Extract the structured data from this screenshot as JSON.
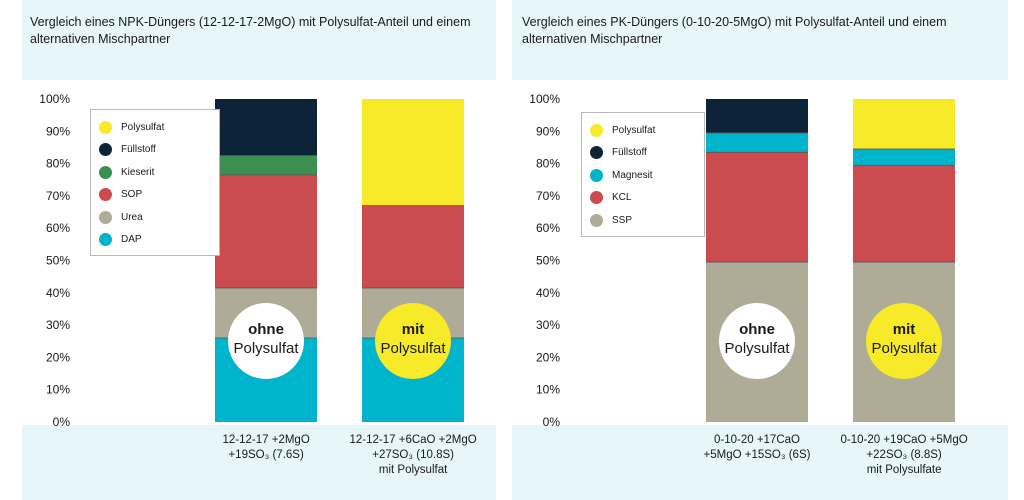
{
  "chart_data": [
    {
      "type": "bar",
      "stacked": true,
      "title_lines": [
        "Vergleich eines NPK-Düngers (12-12-17-2MgO) mit Polysulfat-Anteil und einem",
        "alternativen Mischpartner"
      ],
      "xlabel": "",
      "ylabel": "",
      "ylim": [
        0,
        100
      ],
      "y_ticks": [
        "0%",
        "10%",
        "20%",
        "30%",
        "40%",
        "50%",
        "60%",
        "70%",
        "80%",
        "90%",
        "100%"
      ],
      "grid": false,
      "legend_position": "top-left",
      "legend": [
        "Polysulfat",
        "Füllstoff",
        "Kieserit",
        "SOP",
        "Urea",
        "DAP"
      ],
      "categories": [
        {
          "lines": [
            "12-12-17 +2MgO",
            "+19SO₃ (7.6S)"
          ]
        },
        {
          "lines": [
            "12-12-17 +6CaO +2MgO",
            "+27SO₃ (10.8S)",
            "mit Polysulfat"
          ]
        }
      ],
      "badges": [
        {
          "lines": [
            "ohne",
            "Polysulfat"
          ],
          "style": "white"
        },
        {
          "lines": [
            "mit",
            "Polysulfat"
          ],
          "style": "yellow"
        }
      ],
      "series": [
        {
          "name": "DAP",
          "color": "#00b4cc",
          "values": [
            26,
            26
          ]
        },
        {
          "name": "Urea",
          "color": "#aeab96",
          "values": [
            15.5,
            15.5
          ]
        },
        {
          "name": "SOP",
          "color": "#cc4b4e",
          "values": [
            35,
            25.5
          ]
        },
        {
          "name": "Kieserit",
          "color": "#3d8f4f",
          "values": [
            6,
            0
          ]
        },
        {
          "name": "Füllstoff",
          "color": "#0d2438",
          "values": [
            17.5,
            0
          ]
        },
        {
          "name": "Polysulfat",
          "color": "#f7ea28",
          "values": [
            0,
            33
          ]
        }
      ]
    },
    {
      "type": "bar",
      "stacked": true,
      "title_lines": [
        "Vergleich eines PK-Düngers (0-10-20-5MgO) mit Polysulfat-Anteil und einem",
        "alternativen Mischpartner"
      ],
      "xlabel": "",
      "ylabel": "",
      "ylim": [
        0,
        100
      ],
      "y_ticks": [
        "0%",
        "10%",
        "20%",
        "30%",
        "40%",
        "50%",
        "60%",
        "70%",
        "80%",
        "90%",
        "100%"
      ],
      "grid": false,
      "legend_position": "top-left",
      "legend": [
        "Polysulfat",
        "Füllstoff",
        "Magnesit",
        "KCL",
        "SSP"
      ],
      "categories": [
        {
          "lines": [
            "0-10-20 +17CaO",
            "+5MgO +15SO₃ (6S)"
          ]
        },
        {
          "lines": [
            "0-10-20 +19CaO +5MgO",
            "+22SO₃ (8.8S)",
            "mit Polysulfate"
          ]
        }
      ],
      "badges": [
        {
          "lines": [
            "ohne",
            "Polysulfat"
          ],
          "style": "white"
        },
        {
          "lines": [
            "mit",
            "Polysulfat"
          ],
          "style": "yellow"
        }
      ],
      "series": [
        {
          "name": "SSP",
          "color": "#aeab96",
          "values": [
            49.5,
            49.5
          ]
        },
        {
          "name": "KCL",
          "color": "#cc4b4e",
          "values": [
            34,
            30
          ]
        },
        {
          "name": "Magnesit",
          "color": "#00b4cc",
          "values": [
            6,
            5
          ]
        },
        {
          "name": "Füllstoff",
          "color": "#0d2438",
          "values": [
            10.5,
            0
          ]
        },
        {
          "name": "Polysulfat",
          "color": "#f7ea28",
          "values": [
            0,
            15.5
          ]
        }
      ]
    }
  ]
}
